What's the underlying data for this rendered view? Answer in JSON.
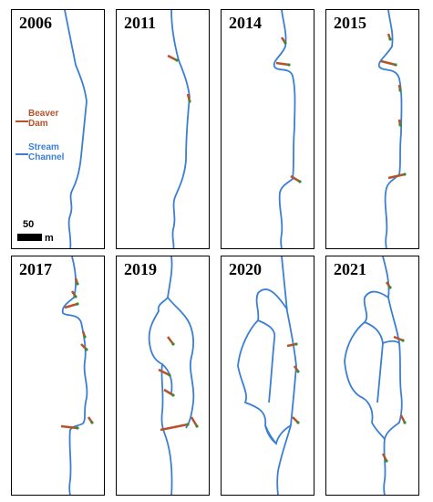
{
  "panels": [
    {
      "year": "2006"
    },
    {
      "year": "2011"
    },
    {
      "year": "2014"
    },
    {
      "year": "2015"
    },
    {
      "year": "2017"
    },
    {
      "year": "2019"
    },
    {
      "year": "2020"
    },
    {
      "year": "2021"
    }
  ],
  "legend": {
    "beaver_dam_label": "Beaver Dam",
    "beaver_dam_line1": "Beaver",
    "beaver_dam_line2": "Dam",
    "stream_line1": "Stream",
    "stream_line2": "Channel",
    "beaver_dam_color": "#b5532a",
    "stream_color": "#3a7fd5"
  },
  "scale_bar": {
    "value": "50",
    "unit": "m"
  },
  "colors": {
    "dam_dot": "#3a8a2e"
  }
}
